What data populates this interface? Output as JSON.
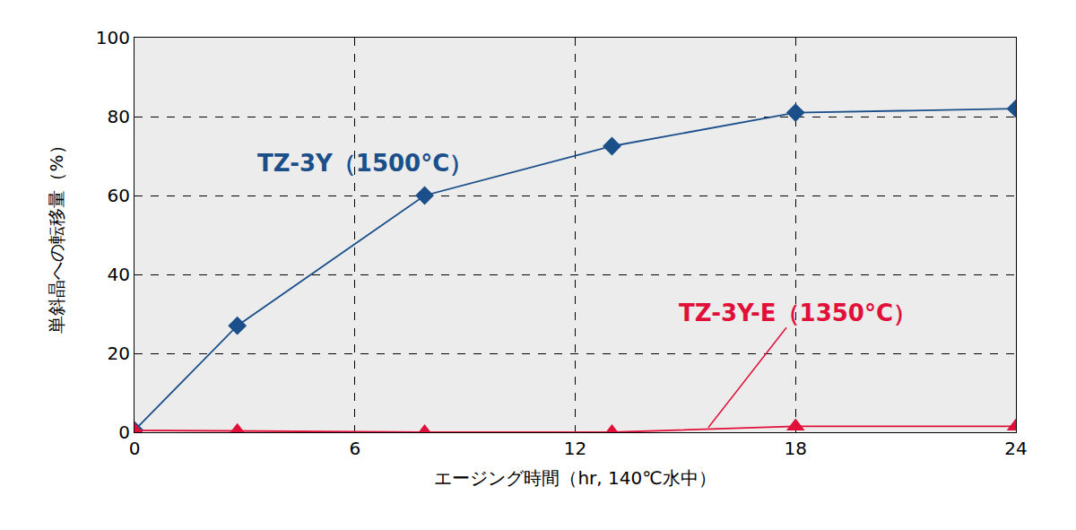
{
  "chart_data": {
    "type": "line",
    "x_label": "エージング時間（hr, 140℃水中）",
    "y_label": "単斜晶への転移量（%）",
    "xlim": [
      0,
      24
    ],
    "xticks": [
      0,
      6,
      12,
      18,
      24
    ],
    "ylim": [
      0,
      100
    ],
    "yticks": [
      0,
      20,
      40,
      60,
      80,
      100
    ],
    "grid": true,
    "series": [
      {
        "name": "TZ-3Y（1500°C）",
        "color": "#1a4f8a",
        "marker": "diamond",
        "x": [
          0,
          2.8,
          7.9,
          13,
          18,
          24
        ],
        "values": [
          0.5,
          27,
          60,
          72.5,
          81,
          82
        ]
      },
      {
        "name": "TZ-3Y-E（1350°C）",
        "color": "#e0103a",
        "marker": "triangle-up",
        "x": [
          0,
          2.8,
          7.9,
          13,
          18,
          24
        ],
        "values": [
          0.5,
          0.3,
          0,
          0,
          1.5,
          1.5
        ]
      }
    ]
  }
}
